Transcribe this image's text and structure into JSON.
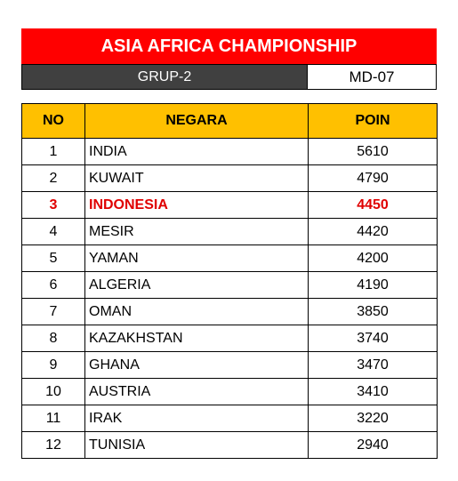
{
  "header": {
    "title": "ASIA AFRICA CHAMPIONSHIP",
    "group": "GRUP-2",
    "matchday": "MD-07"
  },
  "table": {
    "columns": [
      "NO",
      "NEGARA",
      "POIN"
    ],
    "rows": [
      {
        "no": "1",
        "negara": "INDIA",
        "poin": "5610"
      },
      {
        "no": "2",
        "negara": "KUWAIT",
        "poin": "4790"
      },
      {
        "no": "3",
        "negara": "INDONESIA",
        "poin": "4450",
        "highlight": true
      },
      {
        "no": "4",
        "negara": "MESIR",
        "poin": "4420"
      },
      {
        "no": "5",
        "negara": "YAMAN",
        "poin": "4200"
      },
      {
        "no": "6",
        "negara": "ALGERIA",
        "poin": "4190"
      },
      {
        "no": "7",
        "negara": "OMAN",
        "poin": "3850"
      },
      {
        "no": "8",
        "negara": "KAZAKHSTAN",
        "poin": "3740"
      },
      {
        "no": "9",
        "negara": "GHANA",
        "poin": "3470"
      },
      {
        "no": "10",
        "negara": "AUSTRIA",
        "poin": "3410"
      },
      {
        "no": "11",
        "negara": "IRAK",
        "poin": "3220"
      },
      {
        "no": "12",
        "negara": "TUNISIA",
        "poin": "2940"
      }
    ]
  },
  "colors": {
    "title_bg": "#ff0000",
    "group_bg": "#404040",
    "header_bg": "#ffc000",
    "highlight_text": "#e00000"
  }
}
